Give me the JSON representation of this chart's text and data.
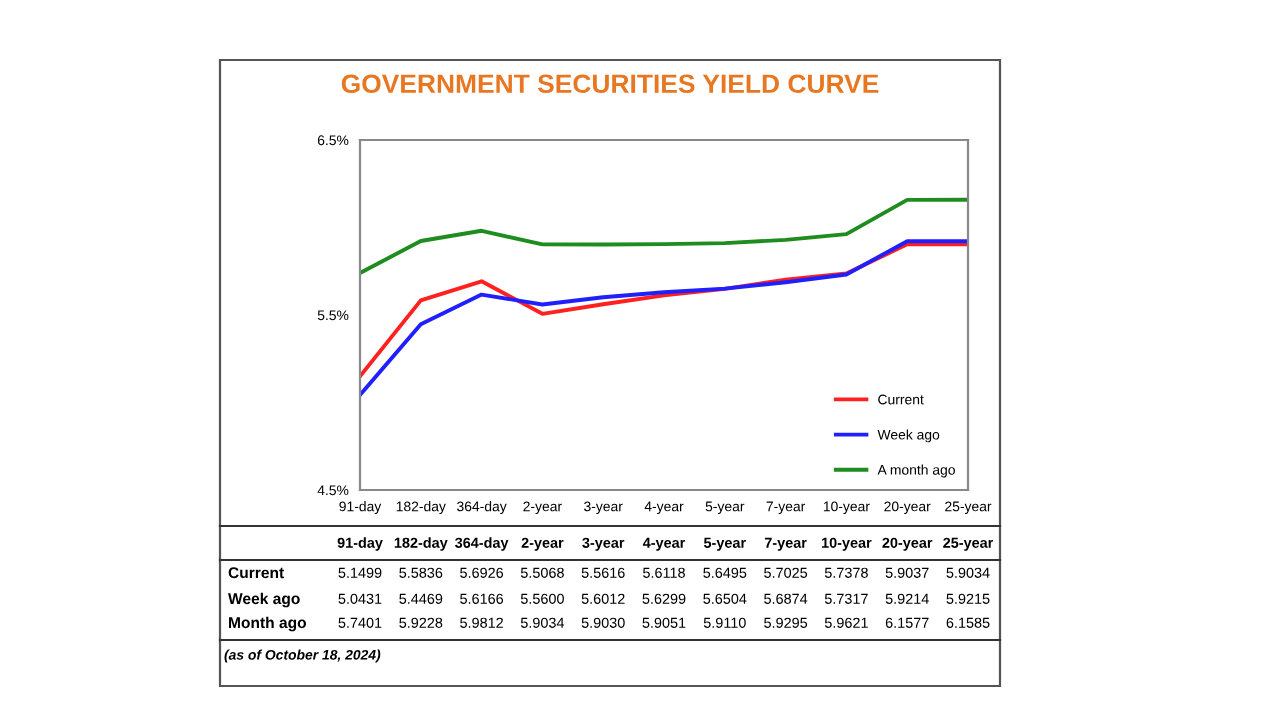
{
  "chart_data": {
    "type": "line",
    "title": "GOVERNMENT SECURITIES YIELD CURVE",
    "categories": [
      "91-day",
      "182-day",
      "364-day",
      "2-year",
      "3-year",
      "4-year",
      "5-year",
      "7-year",
      "10-year",
      "20-year",
      "25-year"
    ],
    "series": [
      {
        "name": "Current",
        "color": "#ff2020",
        "values": [
          5.1499,
          5.5836,
          5.6926,
          5.5068,
          5.5616,
          5.6118,
          5.6495,
          5.7025,
          5.7378,
          5.9037,
          5.9034
        ],
        "value_labels": [
          "5.1499",
          "5.5836",
          "5.6926",
          "5.5068",
          "5.5616",
          "5.6118",
          "5.6495",
          "5.7025",
          "5.7378",
          "5.9037",
          "5.9034"
        ]
      },
      {
        "name": "Week ago",
        "color": "#2020ff",
        "values": [
          5.0431,
          5.4469,
          5.6166,
          5.56,
          5.6012,
          5.6299,
          5.6504,
          5.6874,
          5.7317,
          5.9214,
          5.9215
        ],
        "value_labels": [
          "5.0431",
          "5.4469",
          "5.6166",
          "5.5600",
          "5.6012",
          "5.6299",
          "5.6504",
          "5.6874",
          "5.7317",
          "5.9214",
          "5.9215"
        ]
      },
      {
        "name": "A month ago",
        "color": "#1e8c1e",
        "values": [
          5.7401,
          5.9228,
          5.9812,
          5.9034,
          5.903,
          5.9051,
          5.911,
          5.9295,
          5.9621,
          6.1577,
          6.1585
        ],
        "value_labels": [
          "5.7401",
          "5.9228",
          "5.9812",
          "5.9034",
          "5.9030",
          "5.9051",
          "5.9110",
          "5.9295",
          "5.9621",
          "6.1577",
          "6.1585"
        ]
      }
    ],
    "ylim": [
      4.5,
      6.5
    ],
    "yticks": [
      {
        "value": 4.5,
        "label": "4.5%"
      },
      {
        "value": 5.5,
        "label": "5.5%"
      },
      {
        "value": 6.5,
        "label": "6.5%"
      }
    ],
    "legend": "bottom right",
    "line_style": "solid",
    "annotations": [
      "Current",
      "Week ago",
      "Month ago",
      "(as of October 18, 2024)"
    ]
  }
}
